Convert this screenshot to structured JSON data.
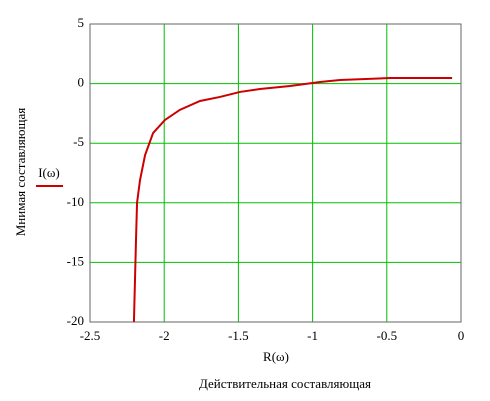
{
  "chart_data": {
    "type": "line",
    "x": [
      -2.204,
      -2.19,
      -2.183,
      -2.163,
      -2.129,
      -2.075,
      -1.995,
      -1.894,
      -1.759,
      -1.624,
      -1.489,
      -1.354,
      -1.152,
      -0.95,
      -0.815,
      -0.478,
      -0.06
    ],
    "series": [
      {
        "name": "I(ω)",
        "color": "#cc0000",
        "values": [
          -20,
          -13.1,
          -10,
          -8.1,
          -6,
          -4.15,
          -3.05,
          -2.2,
          -1.46,
          -1.12,
          -0.7,
          -0.45,
          -0.2,
          0.13,
          0.3,
          0.47,
          0.47
        ]
      }
    ],
    "x_label": "R(ω)",
    "x_title": "Действительная составляющая",
    "y_title": "Мнимая составляющая",
    "xlim": [
      -2.5,
      0
    ],
    "xticks": [
      -2.5,
      -2,
      -1.5,
      -1,
      -0.5,
      0
    ],
    "ylim": [
      -20,
      5
    ],
    "yticks": [
      5,
      0,
      -5,
      -10,
      -15,
      -20
    ],
    "grid": true,
    "grid_color": "#00c000"
  }
}
